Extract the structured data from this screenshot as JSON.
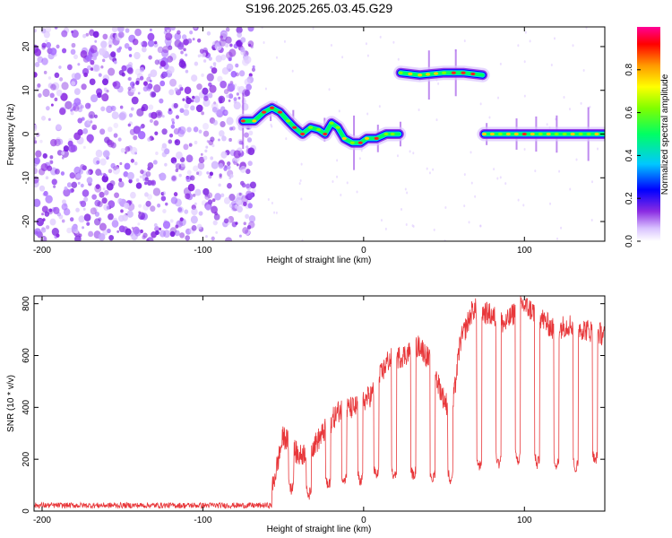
{
  "title": "S196.2025.265.03.45.G29",
  "chart_data": [
    {
      "type": "heatmap",
      "xlabel": "Height of straight line (km)",
      "ylabel": "Frequency (Hz)",
      "xlim": [
        -205,
        150
      ],
      "ylim": [
        -24.5,
        24.5
      ],
      "xticks": [
        -200,
        -100,
        0,
        100
      ],
      "yticks": [
        -20,
        -10,
        0,
        10,
        20
      ],
      "colorbar": {
        "label": "Normalized spectral amplitude",
        "range": [
          0,
          1
        ],
        "ticks": [
          0.0,
          0.2,
          0.4,
          0.6,
          0.8
        ]
      },
      "noise_region_x": [
        -205,
        -68
      ],
      "track": [
        {
          "x": -75,
          "y": 3
        },
        {
          "x": -68,
          "y": 3
        },
        {
          "x": -62,
          "y": 5
        },
        {
          "x": -57,
          "y": 6
        },
        {
          "x": -52,
          "y": 5
        },
        {
          "x": -47,
          "y": 3
        },
        {
          "x": -43,
          "y": 1.5
        },
        {
          "x": -38,
          "y": 0
        },
        {
          "x": -33,
          "y": 1.5
        },
        {
          "x": -28,
          "y": 1
        },
        {
          "x": -24,
          "y": 0
        },
        {
          "x": -20,
          "y": 2.5
        },
        {
          "x": -16,
          "y": 1.5
        },
        {
          "x": -12,
          "y": -1
        },
        {
          "x": -7,
          "y": -2
        },
        {
          "x": -2,
          "y": -2
        },
        {
          "x": 2,
          "y": -1
        },
        {
          "x": 8,
          "y": -1
        },
        {
          "x": 14,
          "y": 0
        },
        {
          "x": 22,
          "y": 0
        },
        {
          "x": 23,
          "y": 14
        },
        {
          "x": 35,
          "y": 13.5
        },
        {
          "x": 50,
          "y": 14
        },
        {
          "x": 62,
          "y": 14
        },
        {
          "x": 74,
          "y": 13.5
        },
        {
          "x": 75,
          "y": 0
        },
        {
          "x": 150,
          "y": 0
        }
      ]
    },
    {
      "type": "line",
      "xlabel": "Height of straight line (km)",
      "ylabel": "SNR (10 * v/v)",
      "xlim": [
        -205,
        150
      ],
      "ylim": [
        0,
        830
      ],
      "xticks": [
        -200,
        -100,
        0,
        100
      ],
      "yticks": [
        0,
        200,
        400,
        600,
        800
      ],
      "color": "#e8373a",
      "baseline": {
        "x": [
          -205,
          -57
        ],
        "y": 22
      },
      "envelope": [
        {
          "x": -57,
          "y": 80
        },
        {
          "x": -50,
          "y": 290
        },
        {
          "x": -40,
          "y": 210
        },
        {
          "x": -30,
          "y": 260
        },
        {
          "x": -22,
          "y": 330
        },
        {
          "x": -15,
          "y": 390
        },
        {
          "x": -5,
          "y": 400
        },
        {
          "x": 5,
          "y": 450
        },
        {
          "x": 15,
          "y": 580
        },
        {
          "x": 25,
          "y": 600
        },
        {
          "x": 35,
          "y": 640
        },
        {
          "x": 42,
          "y": 570
        },
        {
          "x": 50,
          "y": 430
        },
        {
          "x": 55,
          "y": 380
        },
        {
          "x": 60,
          "y": 650
        },
        {
          "x": 68,
          "y": 780
        },
        {
          "x": 78,
          "y": 760
        },
        {
          "x": 88,
          "y": 720
        },
        {
          "x": 98,
          "y": 800
        },
        {
          "x": 108,
          "y": 760
        },
        {
          "x": 118,
          "y": 700
        },
        {
          "x": 128,
          "y": 720
        },
        {
          "x": 138,
          "y": 700
        },
        {
          "x": 150,
          "y": 680
        }
      ],
      "dropouts": [
        {
          "x": -45,
          "y": 60
        },
        {
          "x": -34,
          "y": 40
        },
        {
          "x": -22,
          "y": 70
        },
        {
          "x": -12,
          "y": 90
        },
        {
          "x": -2,
          "y": 90
        },
        {
          "x": 8,
          "y": 110
        },
        {
          "x": 19,
          "y": 110
        },
        {
          "x": 31,
          "y": 110
        },
        {
          "x": 43,
          "y": 100
        },
        {
          "x": 54,
          "y": 100
        },
        {
          "x": 72,
          "y": 150
        },
        {
          "x": 84,
          "y": 160
        },
        {
          "x": 96,
          "y": 170
        },
        {
          "x": 108,
          "y": 160
        },
        {
          "x": 120,
          "y": 150
        },
        {
          "x": 132,
          "y": 140
        },
        {
          "x": 144,
          "y": 170
        }
      ]
    }
  ]
}
